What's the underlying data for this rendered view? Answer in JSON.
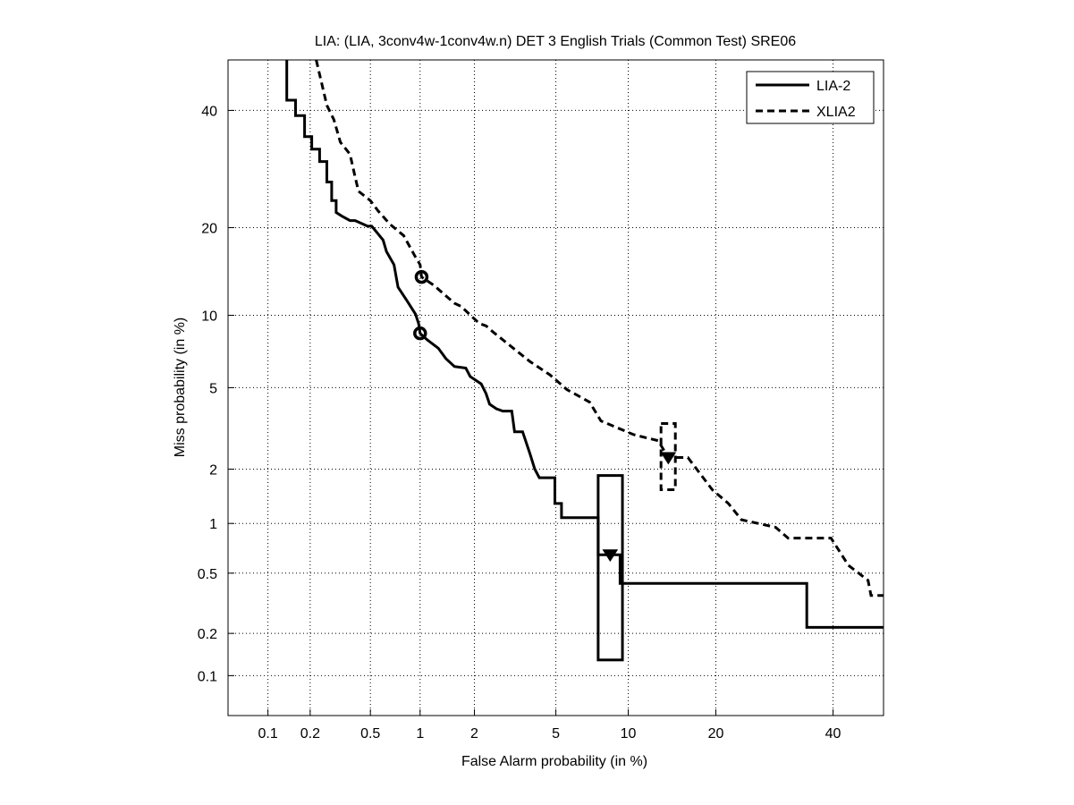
{
  "chart_data": {
    "type": "line",
    "title": "LIA: (LIA, 3conv4w-1conv4w.n) DET 3 English Trials (Common Test) SRE06",
    "xlabel": "False Alarm probability (in %)",
    "ylabel": "Miss probability (in %)",
    "xscale": "probit",
    "yscale": "probit",
    "xlim": [
      0.05,
      50
    ],
    "ylim": [
      0.05,
      50
    ],
    "xticks": [
      0.1,
      0.2,
      0.5,
      1,
      2,
      5,
      10,
      20,
      40
    ],
    "xtick_labels": [
      "0.1",
      "0.2",
      "0.5",
      "1",
      "2",
      "5",
      "10",
      "20",
      "40"
    ],
    "yticks": [
      0.1,
      0.2,
      0.5,
      1,
      2,
      5,
      10,
      20,
      40
    ],
    "ytick_labels": [
      "0.1",
      "0.2",
      "0.5",
      "1",
      "2",
      "5",
      "10",
      "20",
      "40"
    ],
    "grid": true,
    "legend_position": "top-right",
    "series": [
      {
        "name": "LIA-2",
        "style": "solid",
        "points": [
          [
            0.137,
            50
          ],
          [
            0.137,
            42
          ],
          [
            0.158,
            42
          ],
          [
            0.158,
            39
          ],
          [
            0.183,
            39
          ],
          [
            0.183,
            35
          ],
          [
            0.205,
            35
          ],
          [
            0.205,
            32.7
          ],
          [
            0.232,
            32.7
          ],
          [
            0.232,
            30.5
          ],
          [
            0.26,
            30.5
          ],
          [
            0.26,
            27
          ],
          [
            0.28,
            27
          ],
          [
            0.28,
            24
          ],
          [
            0.3,
            24
          ],
          [
            0.3,
            22.2
          ],
          [
            0.33,
            21.6
          ],
          [
            0.37,
            21
          ],
          [
            0.4,
            21
          ],
          [
            0.48,
            20.2
          ],
          [
            0.51,
            20.2
          ],
          [
            0.55,
            19.3
          ],
          [
            0.6,
            18.3
          ],
          [
            0.63,
            16.8
          ],
          [
            0.7,
            15.2
          ],
          [
            0.74,
            12.7
          ],
          [
            0.84,
            11.3
          ],
          [
            0.94,
            10.1
          ],
          [
            0.98,
            9.3
          ],
          [
            1.0,
            8.5
          ],
          [
            1.1,
            8.0
          ],
          [
            1.27,
            7.4
          ],
          [
            1.4,
            6.7
          ],
          [
            1.56,
            6.2
          ],
          [
            1.8,
            6.1
          ],
          [
            1.9,
            5.6
          ],
          [
            2.17,
            5.2
          ],
          [
            2.3,
            4.7
          ],
          [
            2.4,
            4.2
          ],
          [
            2.6,
            4.0
          ],
          [
            2.8,
            3.9
          ],
          [
            3.1,
            3.9
          ],
          [
            3.2,
            3.1
          ],
          [
            3.5,
            3.1
          ],
          [
            3.8,
            2.4
          ],
          [
            4.0,
            2.0
          ],
          [
            4.2,
            1.8
          ],
          [
            4.95,
            1.8
          ],
          [
            4.95,
            1.3
          ],
          [
            5.3,
            1.3
          ],
          [
            5.3,
            1.08
          ],
          [
            7.6,
            1.08
          ],
          [
            7.6,
            0.65
          ],
          [
            9.3,
            0.65
          ],
          [
            9.3,
            0.43
          ],
          [
            35,
            0.43
          ],
          [
            35,
            0.22
          ],
          [
            50,
            0.22
          ]
        ],
        "markers": [
          {
            "shape": "circle",
            "x": 1.0,
            "y": 8.5
          },
          {
            "shape": "triangle",
            "x": 8.5,
            "y": 0.65
          }
        ],
        "confidence_box": {
          "x": [
            7.6,
            9.5
          ],
          "y": [
            0.13,
            1.85
          ]
        }
      },
      {
        "name": "XLIA2",
        "style": "dashed",
        "points": [
          [
            0.22,
            50
          ],
          [
            0.26,
            41
          ],
          [
            0.29,
            38.2
          ],
          [
            0.32,
            34
          ],
          [
            0.37,
            31.8
          ],
          [
            0.4,
            27.8
          ],
          [
            0.42,
            25.5
          ],
          [
            0.5,
            24
          ],
          [
            0.56,
            22.4
          ],
          [
            0.66,
            20.5
          ],
          [
            0.8,
            18.9
          ],
          [
            0.93,
            16.3
          ],
          [
            1.0,
            15.2
          ],
          [
            1.02,
            13.8
          ],
          [
            1.2,
            12.9
          ],
          [
            1.56,
            11.1
          ],
          [
            1.7,
            10.8
          ],
          [
            2.12,
            9.3
          ],
          [
            2.3,
            9.1
          ],
          [
            2.5,
            8.6
          ],
          [
            3.8,
            6.5
          ],
          [
            4.7,
            5.7
          ],
          [
            5.6,
            4.9
          ],
          [
            7.0,
            4.3
          ],
          [
            7.8,
            3.5
          ],
          [
            10.5,
            3.0
          ],
          [
            12.9,
            2.8
          ],
          [
            14,
            2.3
          ],
          [
            16.3,
            2.3
          ],
          [
            19.5,
            1.55
          ],
          [
            21.8,
            1.3
          ],
          [
            23.8,
            1.05
          ],
          [
            29.4,
            0.95
          ],
          [
            31.6,
            0.82
          ],
          [
            39.6,
            0.82
          ],
          [
            43,
            0.56
          ],
          [
            46.9,
            0.45
          ],
          [
            47.5,
            0.36
          ],
          [
            50,
            0.36
          ]
        ],
        "markers": [
          {
            "shape": "circle",
            "x": 1.02,
            "y": 13.8
          },
          {
            "shape": "triangle",
            "x": 14,
            "y": 2.3
          }
        ],
        "confidence_box": {
          "x": [
            13.2,
            14.8
          ],
          "y": [
            1.55,
            3.4
          ]
        }
      }
    ]
  }
}
